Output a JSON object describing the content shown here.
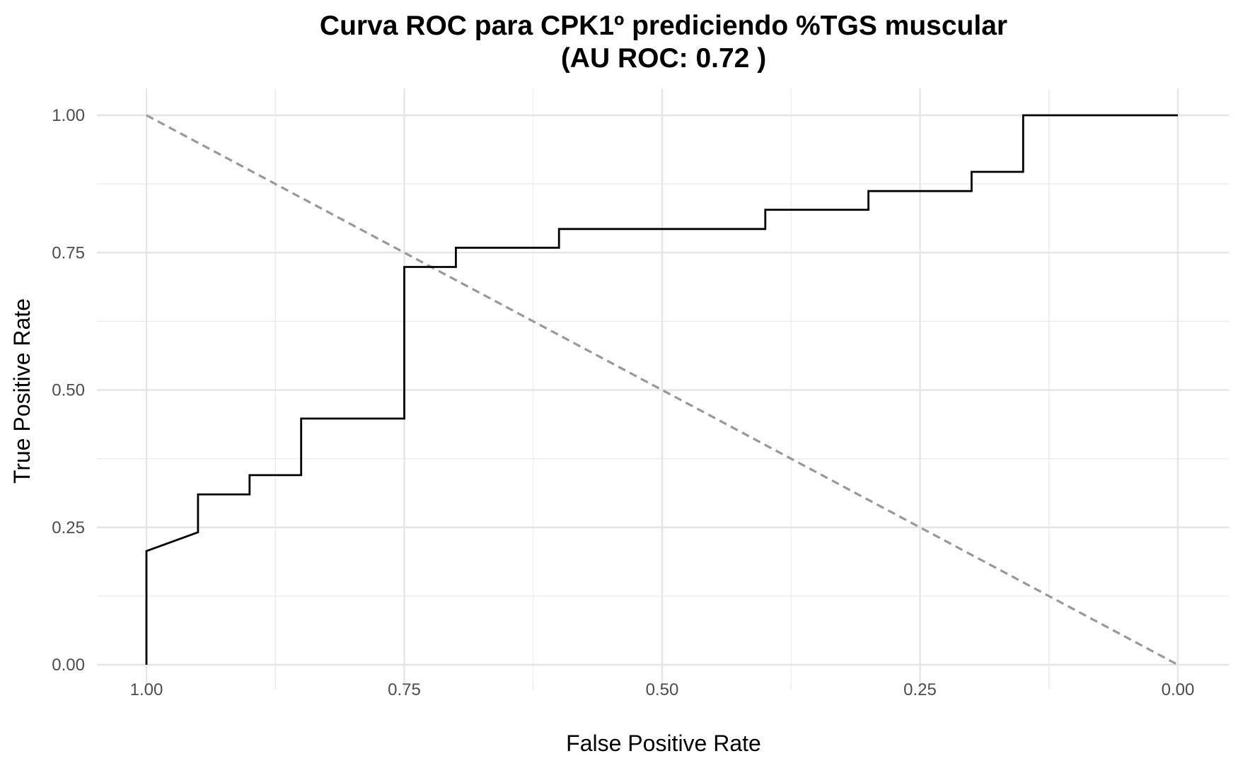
{
  "chart_data": {
    "type": "line",
    "title": "Curva ROC para CPK1º prediciendo %TGS muscular",
    "subtitle": "(AU ROC: 0.72 )",
    "xlabel": "False Positive Rate",
    "ylabel": "True Positive Rate",
    "x_reversed": true,
    "xlim": [
      1.0,
      0.0
    ],
    "ylim": [
      0.0,
      1.0
    ],
    "x_ticks": [
      "1.00",
      "0.75",
      "0.50",
      "0.25",
      "0.00"
    ],
    "x_tick_values": [
      1.0,
      0.75,
      0.5,
      0.25,
      0.0
    ],
    "y_ticks": [
      "0.00",
      "0.25",
      "0.50",
      "0.75",
      "1.00"
    ],
    "y_tick_values": [
      0.0,
      0.25,
      0.5,
      0.75,
      1.0
    ],
    "grid": true,
    "series": [
      {
        "color": "#000000",
        "style": "solid",
        "x": [
          1.0,
          1.0,
          0.95,
          0.95,
          0.9,
          0.9,
          0.85,
          0.85,
          0.75,
          0.75,
          0.7,
          0.7,
          0.6,
          0.6,
          0.4,
          0.4,
          0.3,
          0.3,
          0.2,
          0.2,
          0.15,
          0.15,
          0.0
        ],
        "y": [
          0.0,
          0.207,
          0.241,
          0.31,
          0.31,
          0.345,
          0.345,
          0.448,
          0.448,
          0.724,
          0.724,
          0.759,
          0.759,
          0.793,
          0.793,
          0.828,
          0.828,
          0.862,
          0.862,
          0.897,
          0.897,
          1.0,
          1.0
        ]
      },
      {
        "color": "#999999",
        "style": "dashed",
        "x": [
          1.0,
          0.0
        ],
        "y": [
          1.0,
          0.0
        ]
      }
    ]
  }
}
